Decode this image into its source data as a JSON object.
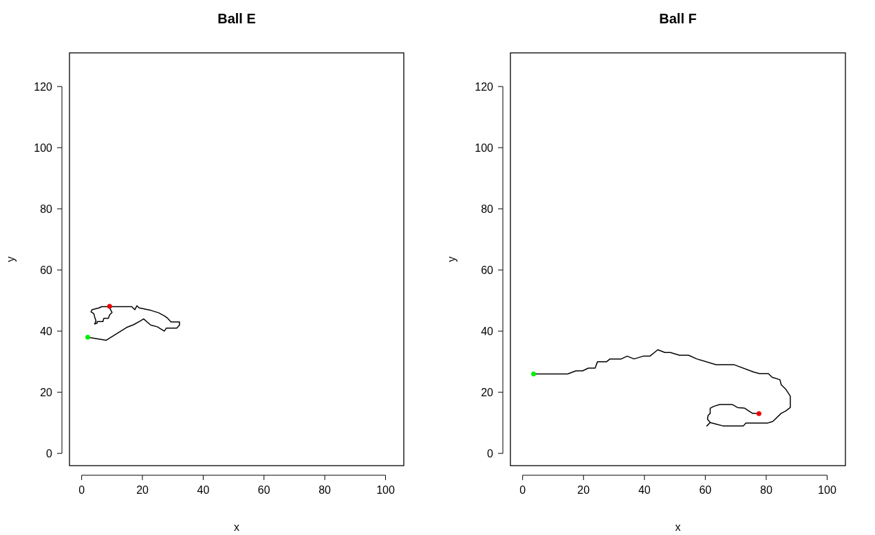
{
  "chart_data": [
    {
      "type": "line",
      "title": "Ball E",
      "xlabel": "x",
      "ylabel": "y",
      "xlim": [
        -4,
        106
      ],
      "ylim": [
        -4,
        131
      ],
      "xticks": [
        0,
        20,
        40,
        60,
        80,
        100
      ],
      "yticks": [
        0,
        20,
        40,
        60,
        80,
        100,
        120
      ],
      "series": [
        {
          "color": "#000000",
          "marker": "none",
          "x": [
            2,
            8.1,
            14.8,
            17.1,
            19.3,
            20.4,
            22.7,
            24.9,
            27.2,
            27.9,
            31.3,
            32.2,
            32.2,
            29.4,
            28.3,
            27.2,
            25.3,
            22.7,
            20.8,
            18.9,
            18.2,
            17.5,
            16.5,
            10.3,
            6.6,
            5.8,
            3.4,
            3.1,
            4,
            4.3,
            4.7,
            4.3,
            5.1,
            5.1,
            7,
            7.3,
            8.8,
            9.2,
            10,
            9.2,
            9.2
          ],
          "values": [
            38,
            37,
            41.2,
            42.1,
            43.3,
            44,
            42,
            41.4,
            40,
            41,
            41,
            42,
            43,
            43,
            44.2,
            45,
            46,
            46.8,
            47.2,
            47.6,
            48.3,
            47,
            48,
            48,
            48,
            47.6,
            47,
            46.3,
            45.7,
            44.6,
            43.4,
            42.3,
            42.6,
            43.1,
            43.1,
            44.2,
            44.2,
            45.3,
            46.1,
            47.6,
            48.1
          ]
        },
        {
          "type": "scatter",
          "color": "#00ee00",
          "marker": "circle",
          "x": [
            2
          ],
          "values": [
            38
          ]
        },
        {
          "type": "scatter",
          "color": "#ee0000",
          "marker": "circle",
          "x": [
            9.2
          ],
          "values": [
            48.1
          ]
        }
      ]
    },
    {
      "type": "line",
      "title": "Ball F",
      "xlabel": "x",
      "ylabel": "y",
      "xlim": [
        -4,
        106
      ],
      "ylim": [
        -4,
        131
      ],
      "xticks": [
        0,
        20,
        40,
        60,
        80,
        100
      ],
      "yticks": [
        0,
        20,
        40,
        60,
        80,
        100,
        120
      ],
      "series": [
        {
          "color": "#000000",
          "marker": "none",
          "x": [
            3.6,
            14.8,
            17.5,
            19.7,
            21.6,
            23.8,
            24.6,
            27.6,
            28.7,
            32.4,
            34.3,
            36.6,
            39.6,
            41.8,
            44.4,
            46.7,
            48.5,
            51.5,
            54.5,
            57.2,
            63.5,
            69.5,
            75.9,
            77.8,
            80.7,
            81.9,
            84.5,
            84.9,
            86.4,
            87.9,
            87.9,
            86.4,
            84.9,
            82.2,
            80.4,
            73.3,
            72.5,
            65.8,
            63.5,
            61.6,
            60.5,
            61.6,
            60.7,
            60.9,
            61.6,
            61.6,
            62.8,
            64.7,
            68.8,
            70.6,
            72.9,
            75.5,
            77.6
          ],
          "values": [
            26,
            26,
            27,
            27,
            27.9,
            27.9,
            30,
            30,
            30.9,
            30.9,
            31.8,
            30.9,
            31.8,
            31.8,
            33.9,
            33,
            33,
            32.1,
            32.1,
            30.9,
            29,
            29,
            26.6,
            26.1,
            26.1,
            24.9,
            24.1,
            22.5,
            21,
            18.7,
            15,
            13.9,
            13.1,
            10.5,
            9.9,
            9.9,
            9,
            9,
            9.6,
            10.1,
            9,
            10.1,
            11.2,
            12.4,
            13.1,
            14.8,
            15.4,
            16,
            16,
            15,
            14.8,
            13.1,
            13
          ]
        },
        {
          "type": "scatter",
          "color": "#00ee00",
          "marker": "circle",
          "x": [
            3.6
          ],
          "values": [
            26
          ]
        },
        {
          "type": "scatter",
          "color": "#ee0000",
          "marker": "circle",
          "x": [
            77.6
          ],
          "values": [
            13
          ]
        }
      ]
    }
  ]
}
